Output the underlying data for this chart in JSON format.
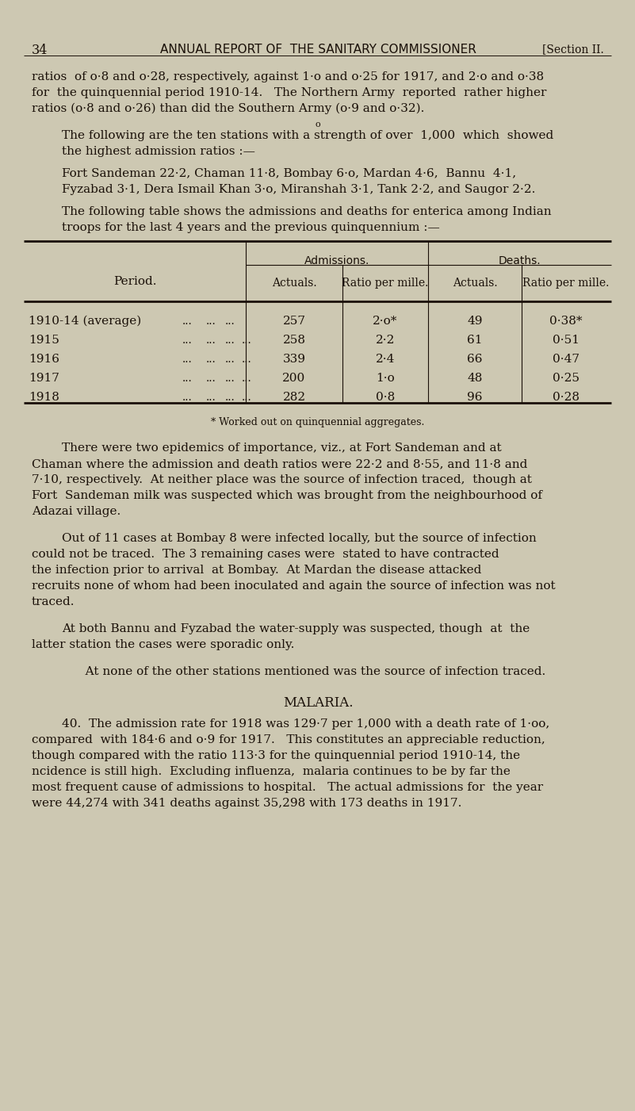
{
  "bg_color": "#cdc8b2",
  "text_color": "#1a1008",
  "page_number": "34",
  "header_center": "ANNUAL REPORT OF  THE SANITARY COMMISSIONER",
  "header_right": "[Section II.",
  "para1_line1": "ratios  of o·8 and o·28, respectively, against 1·o and o·25 for 1917, and 2·o and o·38",
  "para1_line2": "for  the quinquennial period 1910-14.   The Northern Army  reported  rather higher",
  "para1_line3": "ratios (o·8 and o·26) than did the Southern Army (o·9 and o·32).",
  "small_o": "o",
  "para2_line1": "The following are the ten stations with a strength of over  1,000  which  showed",
  "para2_line2": "the highest admission ratios :—",
  "para3_line1": "Fort Sandeman 22·2, Chaman 11·8, Bombay 6·o, Mardan 4·6,  Bannu  4·1,",
  "para3_line2": "Fyzabad 3·1, Dera Ismail Khan 3·o, Miranshah 3·1, Tank 2·2, and Saugor 2·2.",
  "para4_line1": "The following table shows the admissions and deaths for enterica among Indian",
  "para4_line2": "troops for the last 4 years and the previous quinquennium :—",
  "table_header_adm": "Admissions.",
  "table_header_dth": "Deaths.",
  "table_sub_period": "Period.",
  "table_sub_actuals1": "Actuals.",
  "table_sub_ratio1": "Ratio per mille.",
  "table_sub_actuals2": "Actuals.",
  "table_sub_ratio2": "Ratio per mille.",
  "table_rows": [
    [
      "1910-14 (average)",
      "257",
      "2·o*",
      "49",
      "0·38*"
    ],
    [
      "1915",
      "258",
      "2·2",
      "61",
      "0·51"
    ],
    [
      "1916",
      "339",
      "2·4",
      "66",
      "0·47"
    ],
    [
      "1917",
      "200",
      "1·o",
      "48",
      "0·25"
    ],
    [
      "1918",
      "282",
      "0·8",
      "96",
      "0·28"
    ]
  ],
  "table_footnote": "* Worked out on quinquennial aggregates.",
  "para5_lines": [
    "There were two epidemics of importance, viz., at Fort Sandeman and at",
    "Chaman where the admission and death ratios were 22·2 and 8·55, and 11·8 and",
    "7·10, respectively.  At neither place was the source of infection traced,  though at",
    "Fort  Sandeman milk was suspected which was brought from the neighbourhood of",
    "Adazai village."
  ],
  "para6_lines": [
    "Out of 11 cases at Bombay 8 were infected locally, but the source of infection",
    "could not be traced.  The 3 remaining cases were  stated to have contracted",
    "the infection prior to arrival  at Bombay.  At Mardan the disease attacked",
    "recruits none of whom had been inoculated and again the source of infection was not",
    "traced."
  ],
  "para7_lines": [
    "At both Bannu and Fyzabad the water-supply was suspected, though  at  the",
    "latter station the cases were sporadic only."
  ],
  "para8": " At none of the other stations mentioned was the source of infection traced.",
  "malaria_title": "Malaria.",
  "para9_lines": [
    "40.  The admission rate for 1918 was 129·7 per 1,000 with a death rate of 1·oo,",
    "compared  with 184·6 and o·9 for 1917.   This constitutes an appreciable reduction,",
    "though compared with the ratio 113·3 for the quinquennial period 1910-14, the",
    "ncidence is still high.  Excluding influenza,  malaria continues to be by far the",
    "most frequent cause of admissions to hospital.   The actual admissions for  the year",
    "were 44,274 with 341 deaths against 35,298 with 173 deaths in 1917."
  ]
}
